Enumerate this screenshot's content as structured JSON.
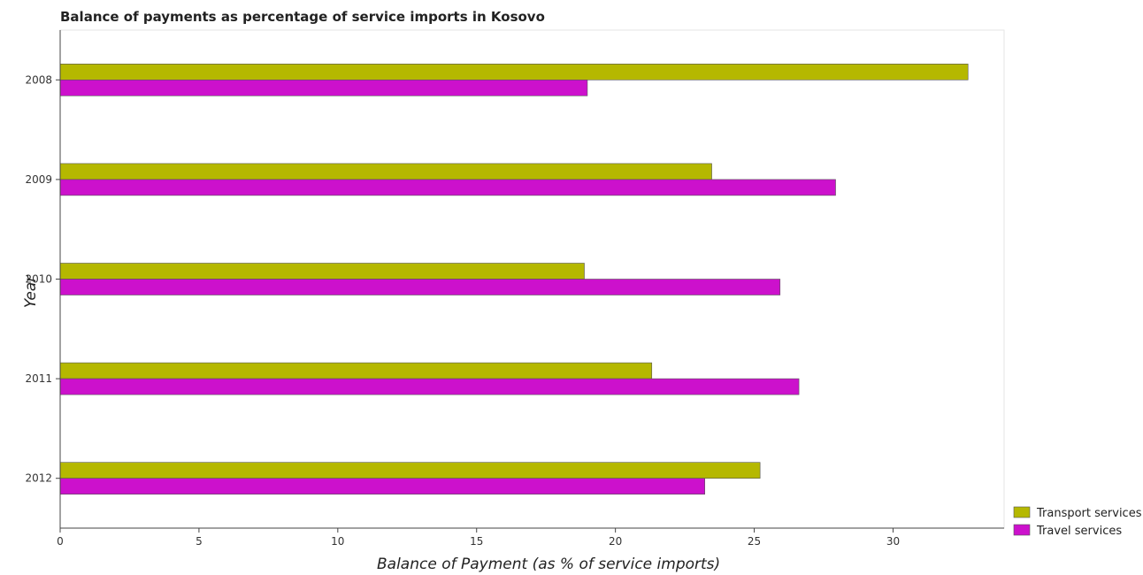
{
  "chart_data": {
    "type": "bar",
    "orientation": "horizontal",
    "title": "Balance of payments as percentage of service imports in Kosovo",
    "xlabel": "Balance of Payment (as % of service imports)",
    "ylabel": "Year",
    "categories": [
      "2008",
      "2009",
      "2010",
      "2011",
      "2012"
    ],
    "xlim": [
      0,
      34
    ],
    "xticks": [
      0,
      5,
      10,
      15,
      20,
      25,
      30
    ],
    "grid": false,
    "legend_position": "bottom-right",
    "series": [
      {
        "name": "Transport services",
        "color": "#b5b800",
        "values": [
          32.7,
          23.47,
          18.88,
          21.31,
          25.21
        ]
      },
      {
        "name": "Travel services",
        "color": "#cc11cc",
        "values": [
          18.99,
          27.93,
          25.93,
          26.61,
          23.22
        ]
      }
    ]
  }
}
